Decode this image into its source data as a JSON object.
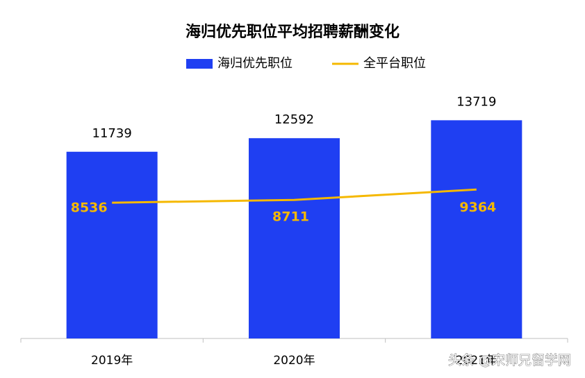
{
  "chart_data": {
    "type": "bar-line",
    "title": "海归优先职位平均招聘薪酬变化",
    "categories": [
      "2019年",
      "2020年",
      "2021年"
    ],
    "series": [
      {
        "name": "海归优先职位",
        "type": "bar",
        "color": "#1f3ff2",
        "values": [
          11739,
          12592,
          13719
        ]
      },
      {
        "name": "全平台职位",
        "type": "line",
        "color": "#f5b800",
        "values": [
          8536,
          8711,
          9364
        ]
      }
    ],
    "ylim": [
      0,
      15000
    ],
    "watermark": "头条 @宋师兄留学网"
  }
}
